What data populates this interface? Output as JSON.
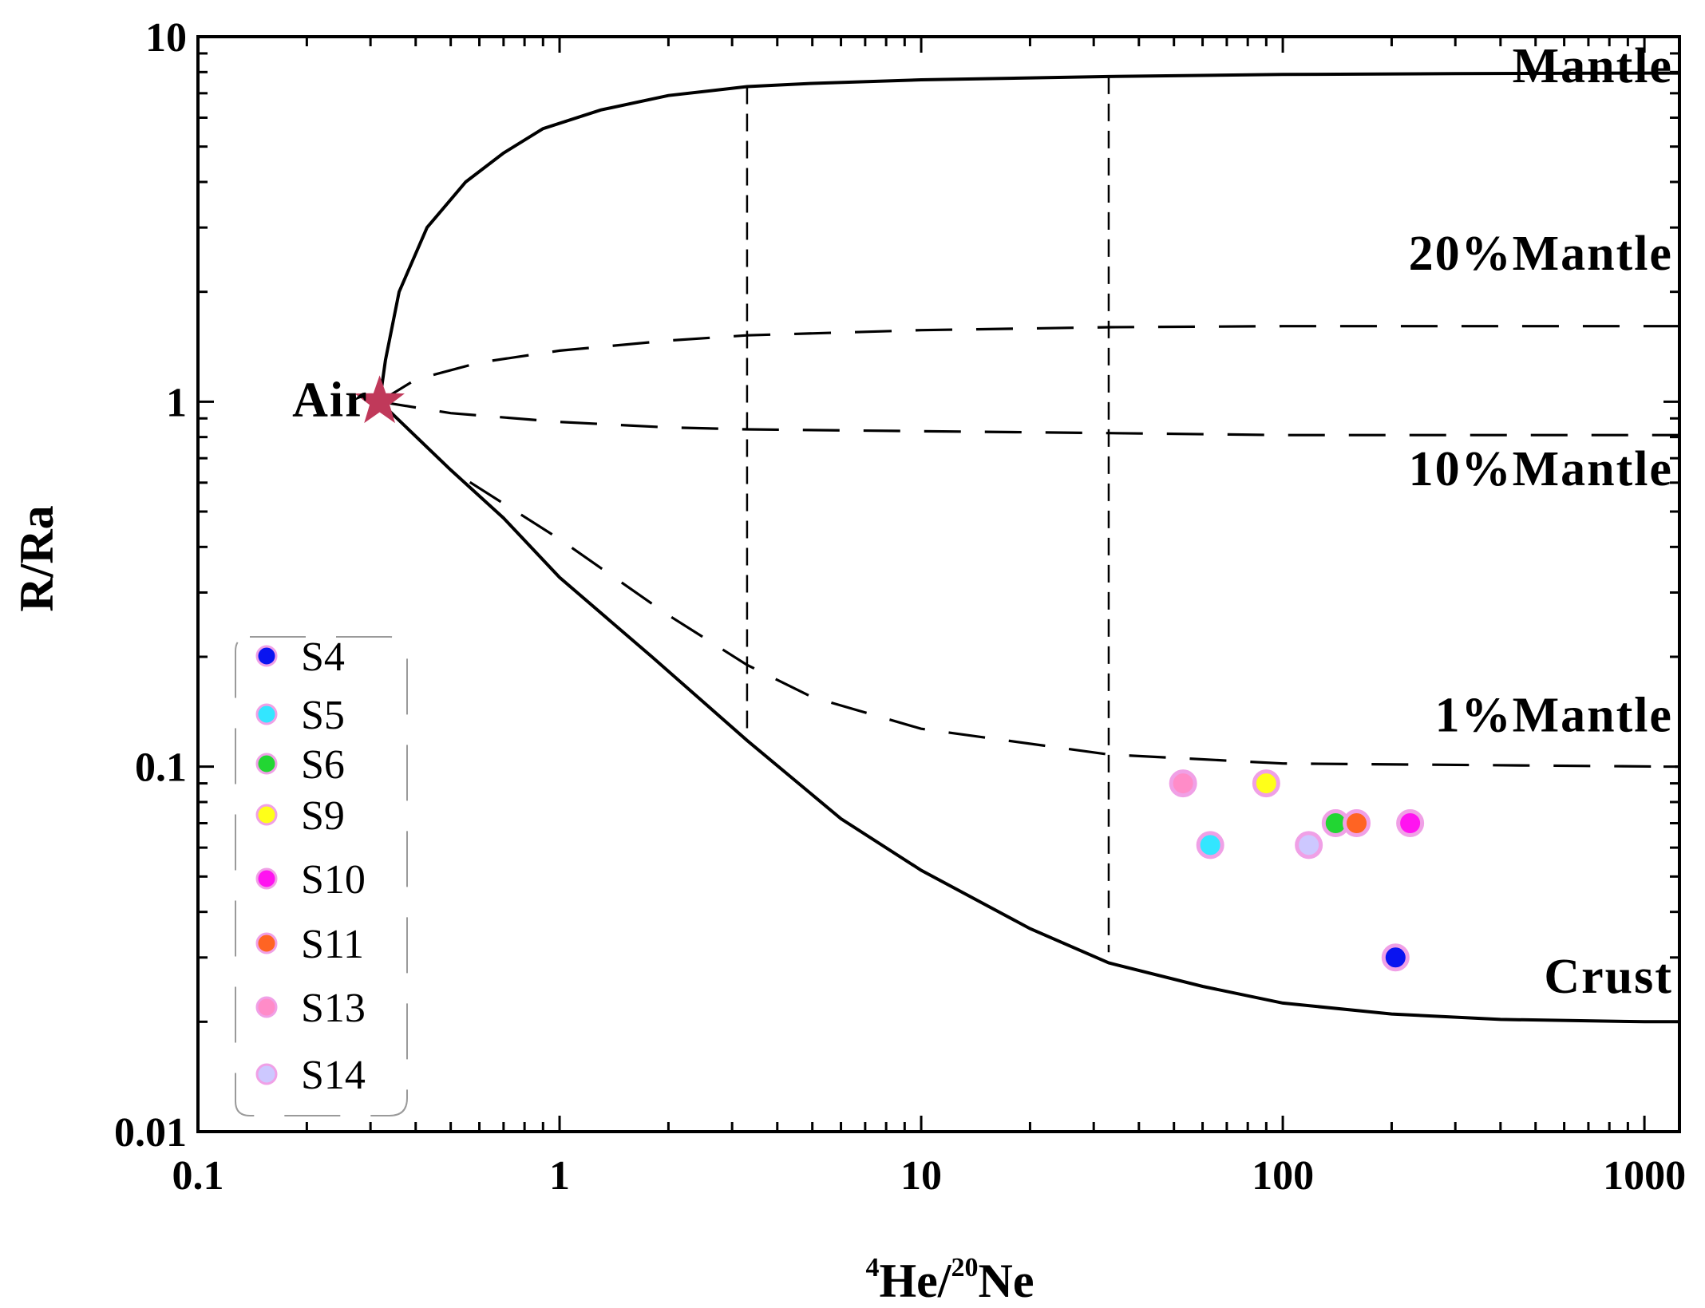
{
  "chart_data": {
    "type": "scatter",
    "title": "",
    "xlabel_parts": [
      "4",
      "He/",
      "20",
      "Ne"
    ],
    "ylabel": "R/Ra",
    "xscale": "log",
    "yscale": "log",
    "xlim": [
      0.1,
      1250
    ],
    "ylim": [
      0.01,
      10
    ],
    "x_ticks": [
      0.1,
      1,
      10,
      100,
      1000
    ],
    "x_tick_labels": [
      "0.1",
      "1",
      "10",
      "100",
      "1000"
    ],
    "y_ticks": [
      0.01,
      0.1,
      1,
      10
    ],
    "y_tick_labels": [
      "0.01",
      "0.1",
      "1",
      "10"
    ],
    "air_point": {
      "label": "Air",
      "x": 0.318,
      "y": 1.0,
      "color": "#c0395a"
    },
    "mixing_curves": [
      {
        "name": "Mantle",
        "style": "solid",
        "label_at": [
          1200,
          7.5
        ],
        "points": [
          [
            0.318,
            1.0
          ],
          [
            0.33,
            1.3
          ],
          [
            0.36,
            2.0
          ],
          [
            0.43,
            3.0
          ],
          [
            0.55,
            4.0
          ],
          [
            0.7,
            4.8
          ],
          [
            0.9,
            5.6
          ],
          [
            1.3,
            6.3
          ],
          [
            2,
            6.9
          ],
          [
            3.3,
            7.3
          ],
          [
            5,
            7.45
          ],
          [
            10,
            7.62
          ],
          [
            33,
            7.78
          ],
          [
            100,
            7.88
          ],
          [
            300,
            7.92
          ],
          [
            1000,
            7.95
          ],
          [
            1250,
            7.95
          ]
        ]
      },
      {
        "name": "20%Mantle",
        "style": "dashed",
        "label_at": [
          1200,
          2.3
        ],
        "points": [
          [
            0.318,
            1.0
          ],
          [
            0.4,
            1.15
          ],
          [
            0.6,
            1.28
          ],
          [
            1,
            1.38
          ],
          [
            2,
            1.47
          ],
          [
            3.3,
            1.52
          ],
          [
            10,
            1.57
          ],
          [
            33,
            1.6
          ],
          [
            100,
            1.61
          ],
          [
            300,
            1.61
          ],
          [
            1250,
            1.61
          ]
        ]
      },
      {
        "name": "10%Mantle",
        "style": "dashed",
        "label_at": [
          1200,
          0.59
        ],
        "points": [
          [
            0.318,
            1.0
          ],
          [
            0.5,
            0.93
          ],
          [
            1,
            0.88
          ],
          [
            2,
            0.85
          ],
          [
            3.3,
            0.84
          ],
          [
            10,
            0.83
          ],
          [
            33,
            0.82
          ],
          [
            100,
            0.81
          ],
          [
            1250,
            0.81
          ]
        ]
      },
      {
        "name": "1%Mantle",
        "style": "dashed",
        "label_at": [
          1200,
          0.125
        ],
        "points": [
          [
            0.318,
            1.0
          ],
          [
            0.5,
            0.65
          ],
          [
            1,
            0.42
          ],
          [
            2,
            0.26
          ],
          [
            3.3,
            0.19
          ],
          [
            5,
            0.155
          ],
          [
            10,
            0.127
          ],
          [
            33,
            0.108
          ],
          [
            100,
            0.102
          ],
          [
            1250,
            0.1
          ]
        ]
      },
      {
        "name": "Crust",
        "style": "solid",
        "label_at": [
          1200,
          0.024
        ],
        "points": [
          [
            0.318,
            1.0
          ],
          [
            0.5,
            0.65
          ],
          [
            0.7,
            0.48
          ],
          [
            1,
            0.33
          ],
          [
            1.8,
            0.2
          ],
          [
            3.3,
            0.118
          ],
          [
            6,
            0.072
          ],
          [
            10,
            0.052
          ],
          [
            20,
            0.036
          ],
          [
            33,
            0.029
          ],
          [
            60,
            0.025
          ],
          [
            100,
            0.0225
          ],
          [
            200,
            0.021
          ],
          [
            400,
            0.0203
          ],
          [
            1000,
            0.02
          ],
          [
            1250,
            0.02
          ]
        ]
      }
    ],
    "vertical_guides": [
      {
        "x": 3.3,
        "y_range": [
          0.12,
          7.3
        ]
      },
      {
        "x": 33,
        "y_range": [
          0.031,
          7.78
        ]
      }
    ],
    "series": [
      {
        "name": "S4",
        "color": "#0a14f0",
        "points": [
          [
            205,
            0.03
          ]
        ]
      },
      {
        "name": "S5",
        "color": "#33e6ff",
        "points": [
          [
            63,
            0.061
          ]
        ]
      },
      {
        "name": "S6",
        "color": "#22d633",
        "points": [
          [
            140,
            0.07
          ]
        ]
      },
      {
        "name": "S9",
        "color": "#ffff19",
        "points": [
          [
            90,
            0.09
          ]
        ]
      },
      {
        "name": "S10",
        "color": "#ff14f0",
        "points": [
          [
            225,
            0.07
          ]
        ]
      },
      {
        "name": "S11",
        "color": "#ff6423",
        "points": [
          [
            160,
            0.07
          ]
        ]
      },
      {
        "name": "S13",
        "color": "#ff8cc8",
        "points": [
          [
            53,
            0.09
          ]
        ]
      },
      {
        "name": "S14",
        "color": "#cdc8ff",
        "points": [
          [
            118,
            0.061
          ]
        ]
      }
    ],
    "point_outline_color": "#f0a0e6",
    "legend": {
      "position": "bottom-left",
      "entries": [
        "S4",
        "S5",
        "S6",
        "S9",
        "S10",
        "S11",
        "S13",
        "S14"
      ]
    }
  }
}
